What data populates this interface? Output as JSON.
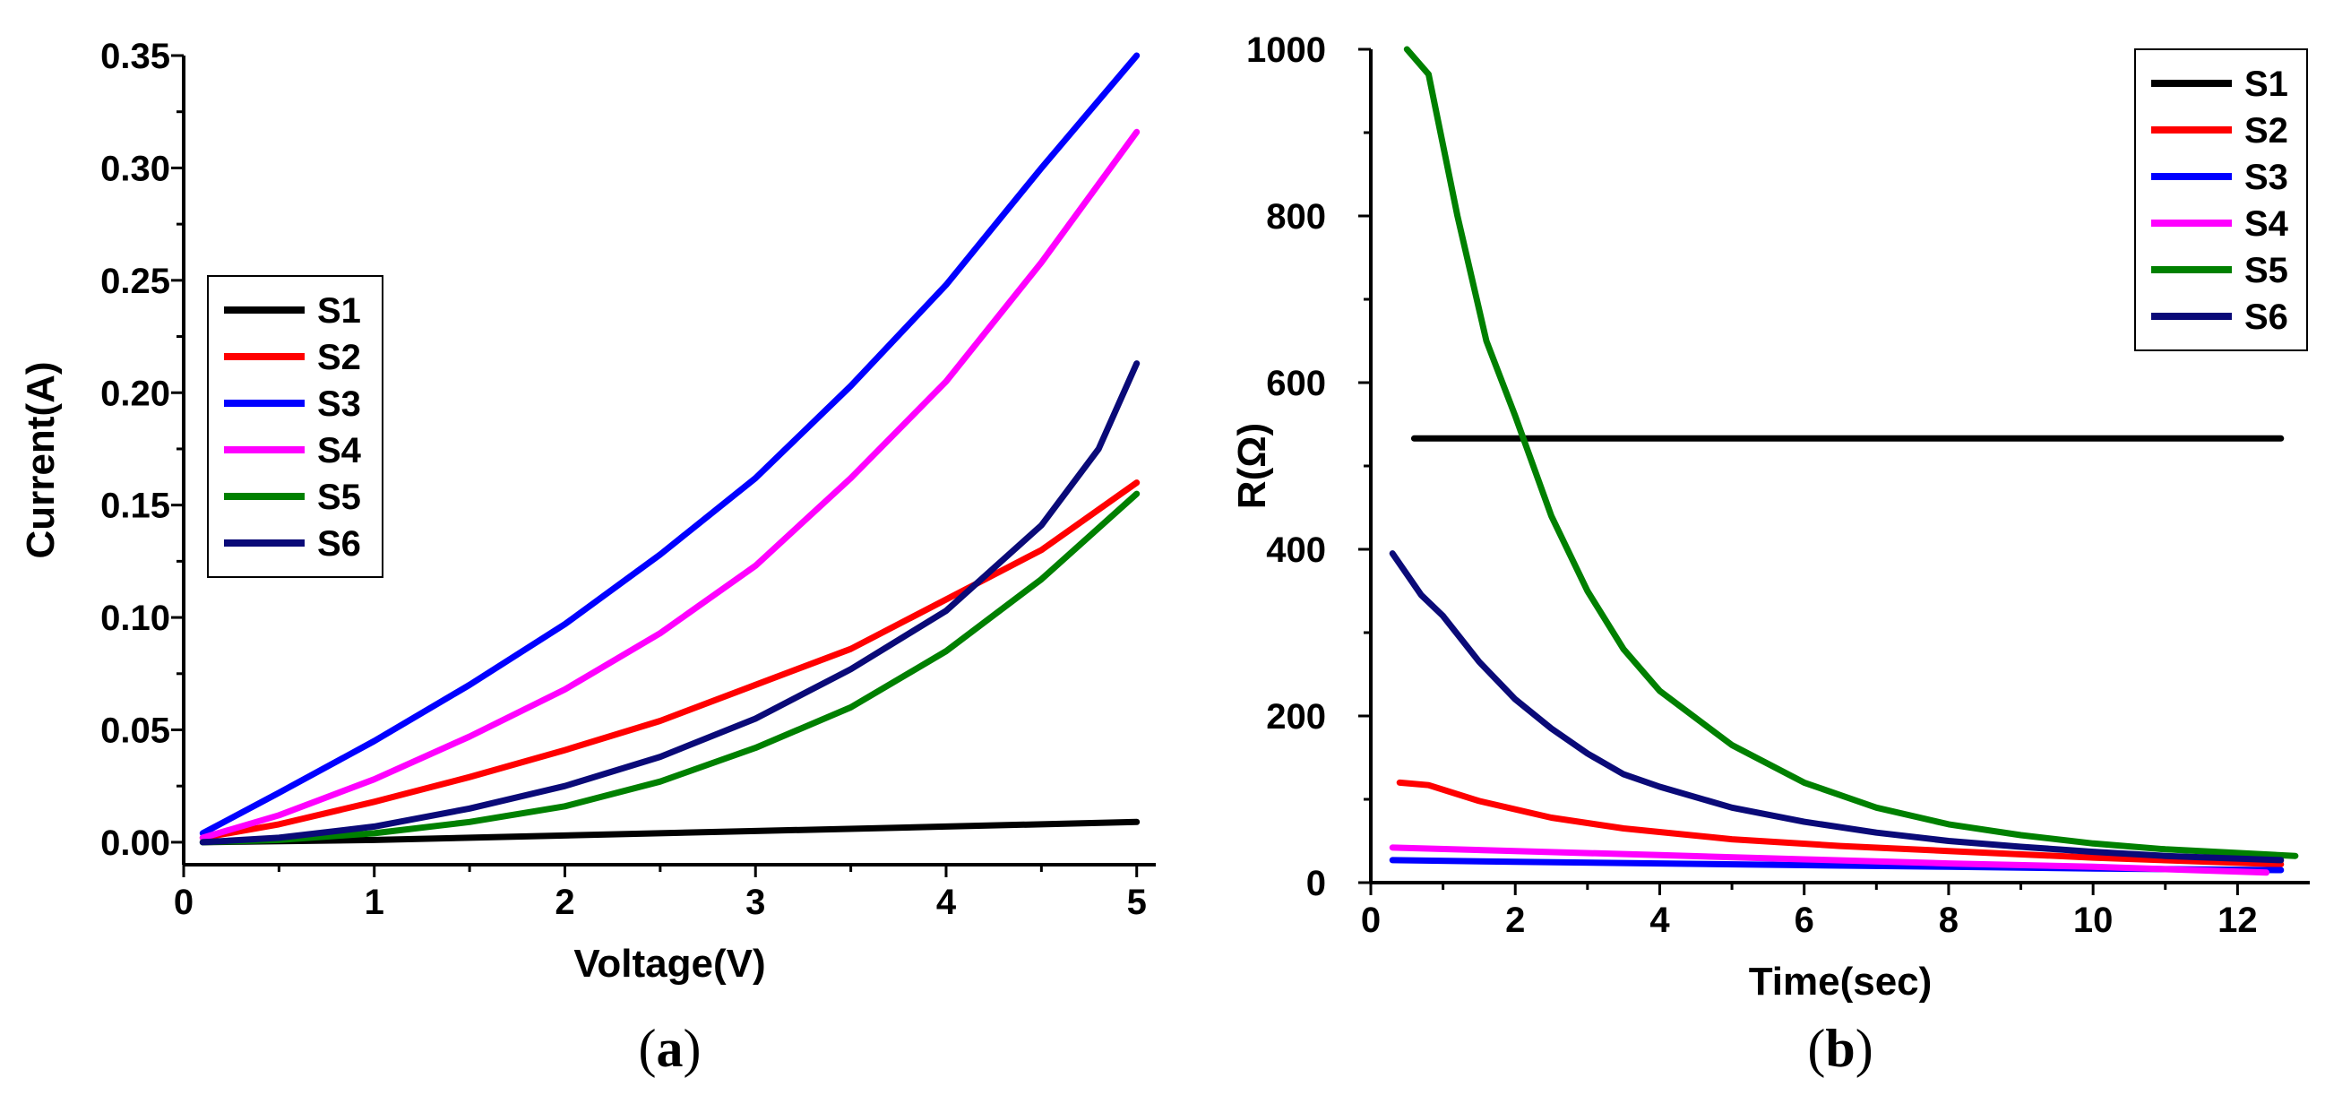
{
  "chart_data": [
    {
      "id": "a",
      "type": "line",
      "caption": "a",
      "title": "",
      "xlabel": "Voltage(V)",
      "ylabel": "Current(A)",
      "xlim": [
        0,
        5.1
      ],
      "ylim": [
        -0.01,
        0.35
      ],
      "xticks": [
        0,
        1,
        2,
        3,
        4,
        5
      ],
      "xtick_labels": [
        "0",
        "1",
        "2",
        "3",
        "4",
        "5"
      ],
      "yticks": [
        0.0,
        0.05,
        0.1,
        0.15,
        0.2,
        0.25,
        0.3,
        0.35
      ],
      "ytick_labels": [
        "0.00",
        "0.05",
        "0.10",
        "0.15",
        "0.20",
        "0.25",
        "0.30",
        "0.35"
      ],
      "grid": false,
      "legend": "center-left",
      "series": [
        {
          "name": "S1",
          "color": "#000000",
          "x": [
            0.1,
            1,
            2,
            3,
            4,
            5
          ],
          "y": [
            0.0,
            0.001,
            0.003,
            0.005,
            0.007,
            0.009
          ]
        },
        {
          "name": "S2",
          "color": "#ff0000",
          "x": [
            0.1,
            0.5,
            1,
            1.5,
            2,
            2.5,
            3,
            3.5,
            4,
            4.5,
            5
          ],
          "y": [
            0.002,
            0.008,
            0.018,
            0.029,
            0.041,
            0.054,
            0.07,
            0.086,
            0.108,
            0.13,
            0.16
          ]
        },
        {
          "name": "S3",
          "color": "#0000ff",
          "x": [
            0.1,
            0.5,
            1,
            1.5,
            2,
            2.5,
            3,
            3.5,
            4,
            4.5,
            5
          ],
          "y": [
            0.004,
            0.022,
            0.045,
            0.07,
            0.097,
            0.128,
            0.162,
            0.203,
            0.248,
            0.3,
            0.35
          ]
        },
        {
          "name": "S4",
          "color": "#ff00ff",
          "x": [
            0.1,
            0.5,
            1,
            1.5,
            2,
            2.5,
            3,
            3.5,
            4,
            4.5,
            5
          ],
          "y": [
            0.002,
            0.012,
            0.028,
            0.047,
            0.068,
            0.093,
            0.123,
            0.162,
            0.205,
            0.258,
            0.316
          ]
        },
        {
          "name": "S5",
          "color": "#008000",
          "x": [
            0.1,
            0.5,
            1,
            1.5,
            2,
            2.5,
            3,
            3.5,
            4,
            4.5,
            5
          ],
          "y": [
            0.0,
            0.001,
            0.004,
            0.009,
            0.016,
            0.027,
            0.042,
            0.06,
            0.085,
            0.117,
            0.155
          ]
        },
        {
          "name": "S6",
          "color": "#0a0a78",
          "x": [
            0.1,
            0.5,
            1,
            1.5,
            2,
            2.5,
            3,
            3.5,
            4,
            4.5,
            4.8,
            5
          ],
          "y": [
            0.0,
            0.002,
            0.007,
            0.015,
            0.025,
            0.038,
            0.055,
            0.077,
            0.103,
            0.141,
            0.175,
            0.213
          ]
        }
      ]
    },
    {
      "id": "b",
      "type": "line",
      "caption": "b",
      "title": "",
      "xlabel": "Time(sec)",
      "ylabel": "R(Ω)",
      "xlim": [
        0,
        13
      ],
      "ylim": [
        0,
        1000
      ],
      "xticks": [
        0,
        2,
        4,
        6,
        8,
        10,
        12
      ],
      "xtick_labels": [
        "0",
        "2",
        "4",
        "6",
        "8",
        "10",
        "12"
      ],
      "yticks": [
        0,
        200,
        400,
        600,
        800,
        1000
      ],
      "ytick_labels": [
        "0",
        "200",
        "400",
        "600",
        "800",
        "1000"
      ],
      "grid": false,
      "legend": "top-right",
      "series": [
        {
          "name": "S1",
          "color": "#000000",
          "x": [
            0.6,
            12.6
          ],
          "y": [
            533,
            533
          ]
        },
        {
          "name": "S2",
          "color": "#ff0000",
          "x": [
            0.4,
            0.8,
            1.5,
            2.5,
            3.5,
            5,
            6.5,
            8,
            10,
            12.6
          ],
          "y": [
            120,
            117,
            98,
            78,
            65,
            52,
            44,
            38,
            30,
            22
          ]
        },
        {
          "name": "S3",
          "color": "#0000ff",
          "x": [
            0.3,
            2,
            4,
            6,
            8,
            10,
            12.6
          ],
          "y": [
            27,
            25,
            23,
            21,
            19,
            17,
            15
          ]
        },
        {
          "name": "S4",
          "color": "#ff00ff",
          "x": [
            0.3,
            2,
            4,
            6,
            8,
            10,
            12.4
          ],
          "y": [
            42,
            38,
            33,
            28,
            23,
            19,
            12
          ]
        },
        {
          "name": "S5",
          "color": "#008000",
          "x": [
            0.5,
            0.8,
            1.2,
            1.6,
            2,
            2.5,
            3,
            3.5,
            4,
            5,
            6,
            7,
            8,
            9,
            10,
            11,
            12.8
          ],
          "y": [
            1000,
            970,
            800,
            650,
            560,
            440,
            350,
            280,
            230,
            165,
            120,
            90,
            70,
            57,
            47,
            40,
            32
          ]
        },
        {
          "name": "S6",
          "color": "#0a0a78",
          "x": [
            0.3,
            0.7,
            1,
            1.5,
            2,
            2.5,
            3,
            3.5,
            4,
            5,
            6,
            7,
            8,
            9,
            10,
            11,
            12.6
          ],
          "y": [
            395,
            345,
            320,
            265,
            220,
            185,
            155,
            130,
            115,
            90,
            73,
            60,
            50,
            43,
            37,
            32,
            27
          ]
        }
      ]
    }
  ]
}
